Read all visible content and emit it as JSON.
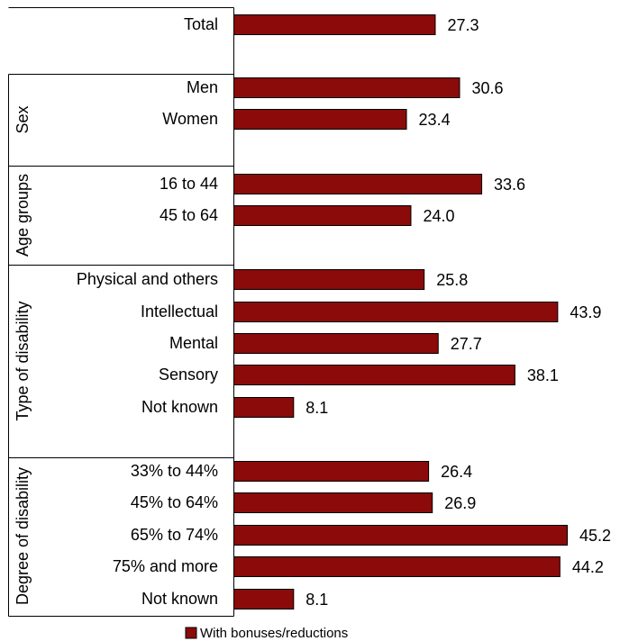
{
  "chart_data": {
    "type": "bar",
    "orientation": "horizontal",
    "series": [
      {
        "name": "With bonuses/reductions",
        "color": "#8b0a0a",
        "values": [
          27.3,
          30.6,
          23.4,
          33.6,
          24.0,
          25.8,
          43.9,
          27.7,
          38.1,
          8.1,
          26.4,
          26.9,
          45.2,
          44.2,
          8.1
        ],
        "labels": [
          "27.3",
          "30.6",
          "23.4",
          "33.6",
          "24.0",
          "25.8",
          "43.9",
          "27.7",
          "38.1",
          "8.1",
          "26.4",
          "26.9",
          "45.2",
          "44.2",
          "8.1"
        ]
      }
    ],
    "categories": [
      "Total",
      "Men",
      "Women",
      "16 to 44",
      "45 to 64",
      "Physical and others",
      "Intellectual",
      "Mental",
      "Sensory",
      "Not known",
      "33% to 44%",
      "45% to 64%",
      "65% to 74%",
      "75% and more",
      "Not known"
    ],
    "groups": [
      {
        "label": "",
        "start": 0,
        "count": 1
      },
      {
        "label": "Sex",
        "start": 1,
        "count": 2
      },
      {
        "label": "Age groups",
        "start": 3,
        "count": 2
      },
      {
        "label": "Type of disability",
        "start": 5,
        "count": 5
      },
      {
        "label": "Degree of disability",
        "start": 10,
        "count": 5
      }
    ],
    "xlim": [
      0,
      46.5
    ],
    "grid": false,
    "legend": "bottom-center",
    "title": "",
    "xlabel": "",
    "ylabel": ""
  }
}
